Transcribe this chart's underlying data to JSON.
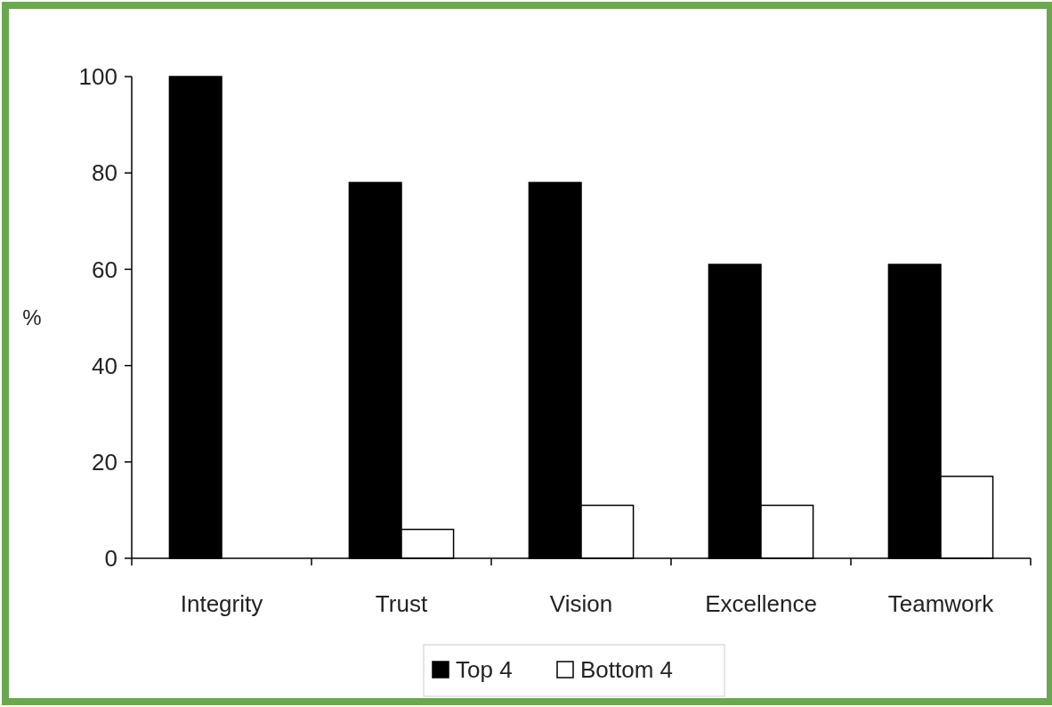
{
  "chart_data": {
    "type": "bar",
    "ylabel": "%",
    "categories": [
      "Integrity",
      "Trust",
      "Vision",
      "Excellence",
      "Teamwork"
    ],
    "series": [
      {
        "name": "Top 4",
        "color": "#000000",
        "values": [
          100,
          78,
          78,
          61,
          61
        ]
      },
      {
        "name": "Bottom 4",
        "color": "#ffffff",
        "values": [
          0,
          6,
          11,
          11,
          17
        ]
      }
    ],
    "ylim": [
      0,
      100
    ],
    "yticks": [
      0,
      20,
      40,
      60,
      80,
      100
    ],
    "grid": false,
    "legend": "bottom"
  }
}
